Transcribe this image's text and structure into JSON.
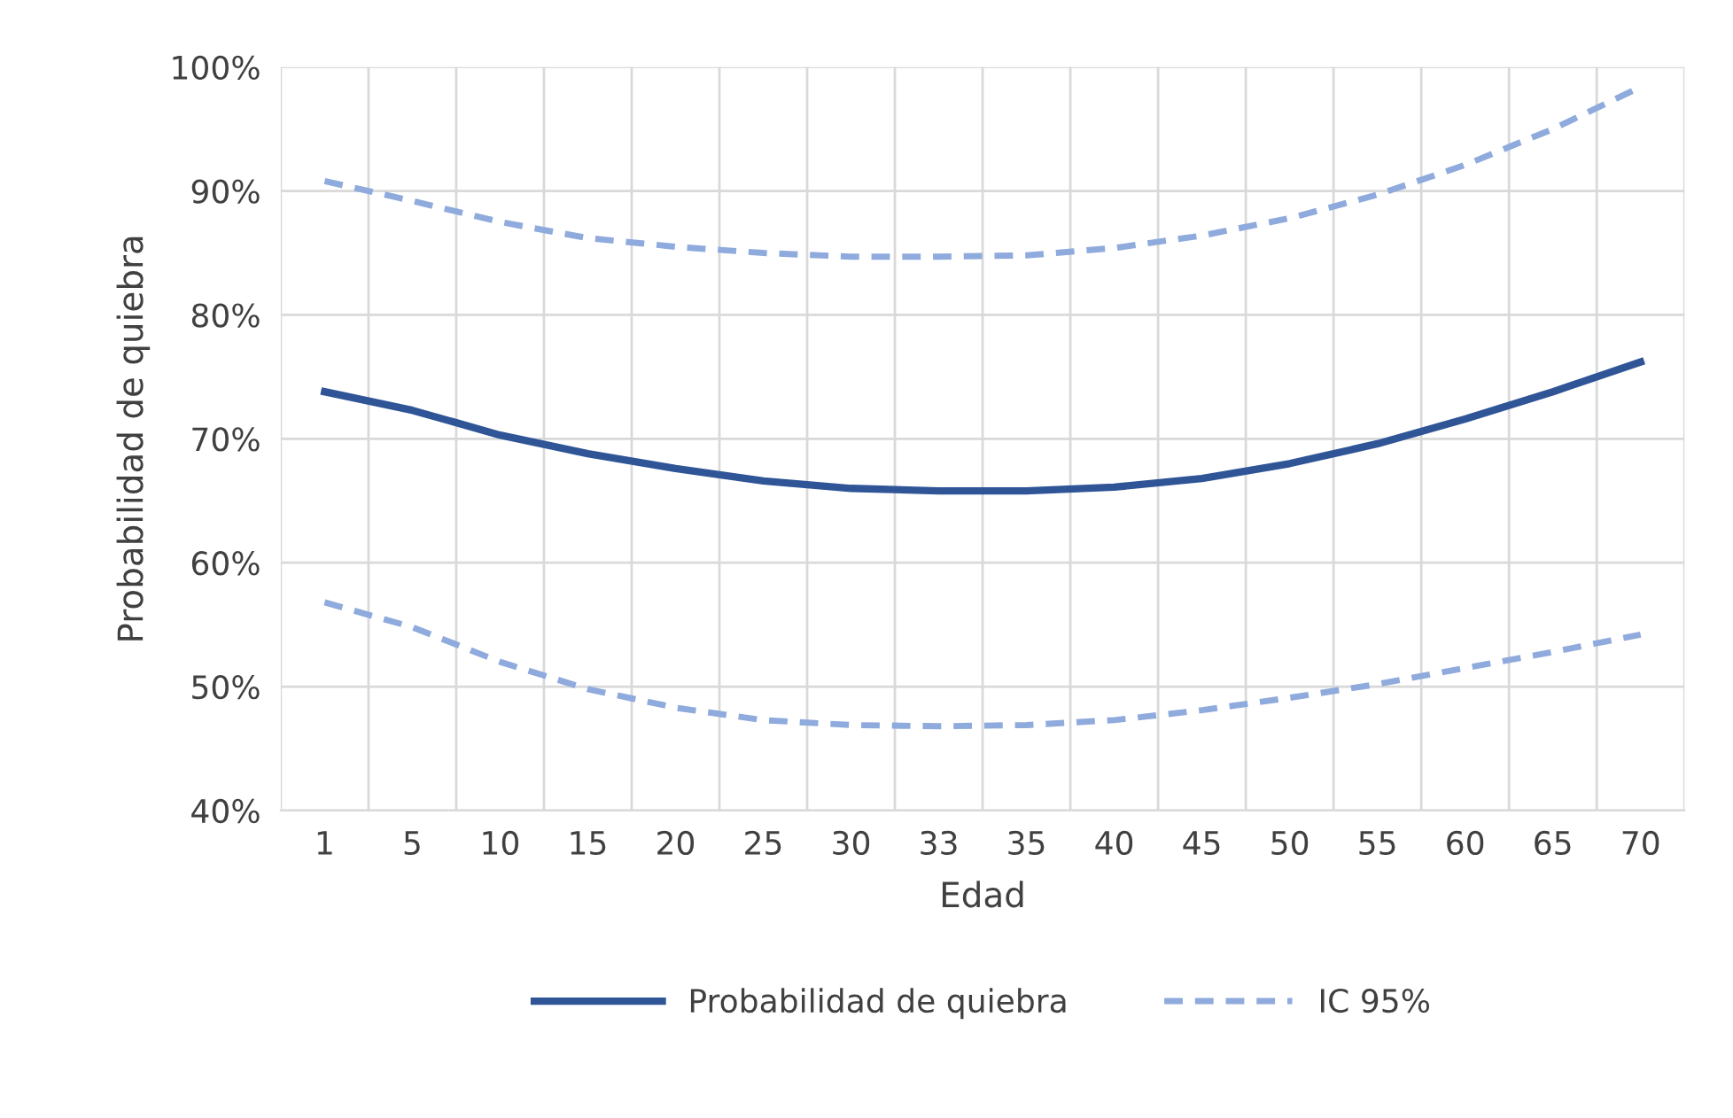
{
  "chart_data": {
    "type": "line",
    "xlabel": "Edad",
    "ylabel": "Probabilidad de quiebra",
    "categories": [
      "1",
      "5",
      "10",
      "15",
      "20",
      "25",
      "30",
      "33",
      "35",
      "40",
      "45",
      "50",
      "55",
      "60",
      "65",
      "70"
    ],
    "series": [
      {
        "name": "Probabilidad de quiebra",
        "color": "#2f5597",
        "line_style": "solid",
        "values": [
          73.8,
          72.3,
          70.3,
          68.8,
          67.6,
          66.6,
          66.0,
          65.8,
          65.8,
          66.1,
          66.8,
          68.0,
          69.6,
          71.6,
          73.8,
          76.2
        ]
      },
      {
        "name": "IC 95%",
        "color": "#8faadc",
        "line_style": "dashed",
        "values": [
          90.8,
          89.2,
          87.5,
          86.2,
          85.5,
          85.0,
          84.7,
          84.7,
          84.8,
          85.4,
          86.4,
          87.8,
          89.7,
          92.1,
          95.0,
          98.4
        ]
      },
      {
        "color": "#8faadc",
        "line_style": "dashed",
        "values": [
          56.8,
          54.8,
          52.0,
          49.8,
          48.3,
          47.3,
          46.9,
          46.8,
          46.9,
          47.3,
          48.1,
          49.1,
          50.2,
          51.5,
          52.8,
          54.2
        ]
      }
    ],
    "ylim": [
      40,
      100
    ],
    "yticks": [
      {
        "value": 40,
        "label": "40%"
      },
      {
        "value": 50,
        "label": "50%"
      },
      {
        "value": 60,
        "label": "60%"
      },
      {
        "value": 70,
        "label": "70%"
      },
      {
        "value": 80,
        "label": "80%"
      },
      {
        "value": 90,
        "label": "90%"
      },
      {
        "value": 100,
        "label": "100%"
      }
    ],
    "grid": true,
    "legend": "bottom",
    "marker": "none"
  }
}
